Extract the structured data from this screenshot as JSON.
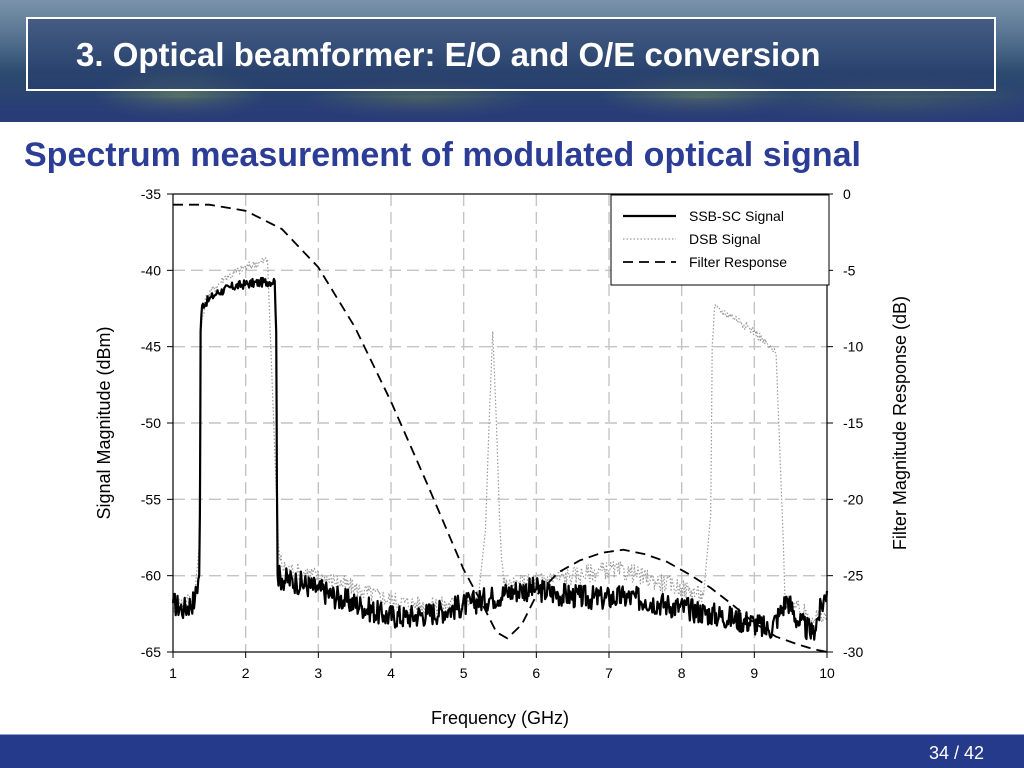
{
  "slide": {
    "title": "3. Optical beamformer: E/O and O/E conversion",
    "subtitle": "Spectrum measurement of modulated optical signal",
    "page_number": "34 / 42"
  },
  "colors": {
    "title_blue": "#2c3d96",
    "footer_blue": "#253a8a"
  },
  "chart_data": {
    "type": "line",
    "xlabel": "Frequency (GHz)",
    "ylabel": "Signal Magnitude (dBm)",
    "y2label": "Filter Magnitude Response (dB)",
    "xlim": [
      1,
      10
    ],
    "ylim": [
      -65,
      -35
    ],
    "y2lim": [
      -30,
      0
    ],
    "xticks": [
      "1",
      "2",
      "3",
      "4",
      "5",
      "6",
      "7",
      "8",
      "9",
      "10"
    ],
    "yticks": [
      "-35",
      "-40",
      "-45",
      "-50",
      "-55",
      "-60",
      "-65"
    ],
    "y2ticks": [
      "0",
      "-5",
      "-10",
      "-15",
      "-20",
      "-25",
      "-30"
    ],
    "grid": true,
    "legend": "top-right",
    "series": [
      {
        "name": "SSB-SC Signal",
        "style": "solid",
        "axis": "left",
        "x": [
          1.0,
          1.15,
          1.3,
          1.36,
          1.37,
          1.38,
          1.4,
          1.5,
          1.6,
          1.8,
          2.0,
          2.2,
          2.4,
          2.42,
          2.43,
          2.44,
          2.5,
          2.7,
          3.0,
          3.3,
          3.6,
          3.9,
          4.2,
          4.5,
          4.8,
          5.1,
          5.4,
          5.6,
          5.8,
          6.0,
          6.3,
          6.6,
          6.9,
          7.2,
          7.5,
          7.8,
          8.1,
          8.4,
          8.7,
          9.0,
          9.2,
          9.35,
          9.45,
          9.6,
          9.8,
          10.0
        ],
        "y": [
          -61.8,
          -62.2,
          -61.6,
          -60.0,
          -56.0,
          -44.0,
          -42.3,
          -41.9,
          -41.5,
          -41.1,
          -40.9,
          -40.8,
          -40.7,
          -44.0,
          -54.0,
          -60.0,
          -60.2,
          -60.4,
          -60.9,
          -61.5,
          -62.0,
          -62.6,
          -62.7,
          -62.5,
          -62.2,
          -61.8,
          -61.4,
          -61.1,
          -60.9,
          -60.9,
          -61.2,
          -61.4,
          -61.5,
          -61.4,
          -61.6,
          -61.9,
          -62.2,
          -62.5,
          -62.8,
          -63.1,
          -63.6,
          -62.5,
          -61.5,
          -63.0,
          -63.8,
          -61.0
        ]
      },
      {
        "name": "DSB Signal",
        "style": "dotted",
        "axis": "left",
        "x": [
          1.0,
          1.3,
          1.36,
          1.38,
          1.45,
          1.7,
          2.0,
          2.3,
          2.45,
          2.5,
          2.8,
          3.2,
          3.6,
          4.0,
          4.5,
          5.0,
          5.2,
          5.3,
          5.35,
          5.4,
          5.45,
          5.5,
          5.55,
          5.6,
          5.7,
          6.0,
          6.5,
          7.0,
          7.3,
          7.6,
          8.0,
          8.3,
          8.4,
          8.42,
          8.45,
          8.7,
          9.0,
          9.3,
          9.4,
          9.42,
          9.5,
          9.7,
          10.0
        ],
        "y": [
          -62.0,
          -61.5,
          -58.0,
          -44.0,
          -41.8,
          -40.5,
          -39.8,
          -39.3,
          -58.0,
          -59.5,
          -59.8,
          -60.3,
          -61.0,
          -61.6,
          -62.0,
          -61.8,
          -61.5,
          -57.0,
          -50.0,
          -44.0,
          -50.0,
          -57.0,
          -60.5,
          -60.8,
          -60.6,
          -60.3,
          -60.0,
          -59.6,
          -59.8,
          -60.3,
          -60.8,
          -61.3,
          -56.0,
          -45.0,
          -42.5,
          -43.0,
          -44.0,
          -45.5,
          -58.0,
          -61.5,
          -62.0,
          -62.5,
          -62.8
        ]
      },
      {
        "name": "Filter Response",
        "style": "dashed",
        "axis": "right",
        "x": [
          1.0,
          1.5,
          2.0,
          2.5,
          3.0,
          3.5,
          4.0,
          4.5,
          5.0,
          5.25,
          5.45,
          5.6,
          5.8,
          6.0,
          6.3,
          6.6,
          6.9,
          7.2,
          7.5,
          7.8,
          8.1,
          8.4,
          8.7,
          9.0,
          9.3,
          9.6,
          9.8,
          10.0
        ],
        "y": [
          -0.7,
          -0.7,
          -1.1,
          -2.3,
          -4.8,
          -8.7,
          -13.6,
          -19.0,
          -24.6,
          -26.8,
          -28.7,
          -29.1,
          -28.2,
          -26.3,
          -24.8,
          -24.0,
          -23.5,
          -23.3,
          -23.6,
          -24.1,
          -24.9,
          -25.8,
          -26.9,
          -28.1,
          -29.0,
          -29.5,
          -29.8,
          -30.0
        ]
      }
    ]
  }
}
